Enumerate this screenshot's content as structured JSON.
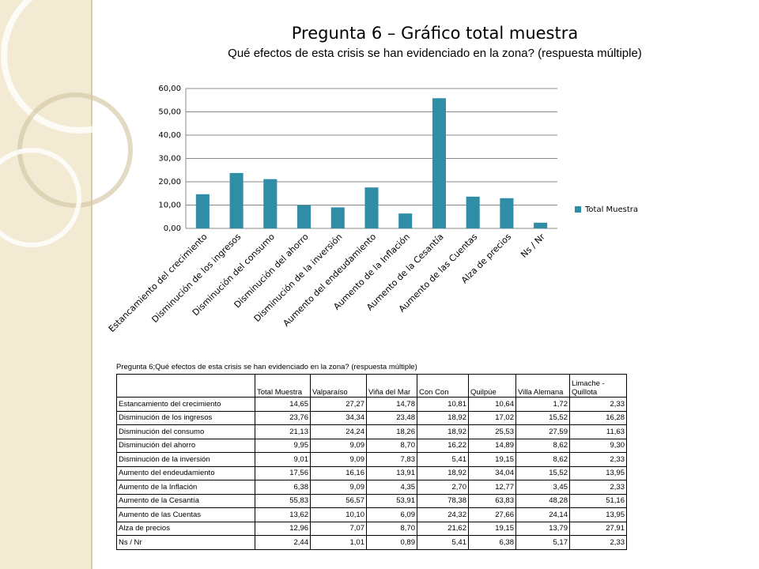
{
  "title": "Pregunta 6 – Gráfico total muestra",
  "subtitle": "Qué efectos de esta crisis se han evidenciado en la zona? (respuesta múltiple)",
  "chart_data": {
    "type": "bar",
    "categories": [
      "Estancamiento del crecimiento",
      "Disminución de los ingresos",
      "Disminución del consumo",
      "Disminución del ahorro",
      "Disminución de la inversión",
      "Aumento del endeudamiento",
      "Aumento de la Inflación",
      "Aumento de la Cesantía",
      "Aumento de las Cuentas",
      "Alza de precios",
      "Ns / Nr"
    ],
    "series": [
      {
        "name": "Total Muestra",
        "color": "#2f8ea6",
        "values": [
          14.65,
          23.76,
          21.13,
          9.95,
          9.01,
          17.56,
          6.38,
          55.83,
          13.62,
          12.96,
          2.44
        ]
      }
    ],
    "ylim": [
      0,
      60
    ],
    "yticks": [
      {
        "value": 0,
        "label": "0,00"
      },
      {
        "value": 10,
        "label": "10,00"
      },
      {
        "value": 20,
        "label": "20,00"
      },
      {
        "value": 30,
        "label": "30,00"
      },
      {
        "value": 40,
        "label": "40,00"
      },
      {
        "value": 50,
        "label": "50,00"
      },
      {
        "value": 60,
        "label": "60,00"
      }
    ],
    "grid": true,
    "legend": "right"
  },
  "table": {
    "title": "Pregunta 6;Qué efectos de esta crisis se han evidenciado en la zona? (respuesta múltiple)",
    "header": [
      "Total Muestra",
      "Valparaíso",
      "Viña del Mar",
      "Con Con",
      "Quilpúe",
      "Villa Alemana",
      "Limache - Quillota"
    ],
    "rows": [
      [
        "Estancamiento del crecimiento",
        "14,65",
        "27,27",
        "14,78",
        "10,81",
        "10,64",
        "1,72",
        "2,33"
      ],
      [
        "Disminución de los ingresos",
        "23,76",
        "34,34",
        "23,48",
        "18,92",
        "17,02",
        "15,52",
        "16,28"
      ],
      [
        "Disminución del consumo",
        "21,13",
        "24,24",
        "18,26",
        "18,92",
        "25,53",
        "27,59",
        "11,63"
      ],
      [
        "Disminución del ahorro",
        "9,95",
        "9,09",
        "8,70",
        "16,22",
        "14,89",
        "8,62",
        "9,30"
      ],
      [
        "Disminución de la inversión",
        "9,01",
        "9,09",
        "7,83",
        "5,41",
        "19,15",
        "8,62",
        "2,33"
      ],
      [
        "Aumento del endeudamiento",
        "17,56",
        "16,16",
        "13,91",
        "18,92",
        "34,04",
        "15,52",
        "13,95"
      ],
      [
        "Aumento de la Inflación",
        "6,38",
        "9,09",
        "4,35",
        "2,70",
        "12,77",
        "3,45",
        "2,33"
      ],
      [
        "Aumento de la Cesantía",
        "55,83",
        "56,57",
        "53,91",
        "78,38",
        "63,83",
        "48,28",
        "51,16"
      ],
      [
        "Aumento de las Cuentas",
        "13,62",
        "10,10",
        "6,09",
        "24,32",
        "27,66",
        "24,14",
        "13,95"
      ],
      [
        "Alza de precios",
        "12,96",
        "7,07",
        "8,70",
        "21,62",
        "19,15",
        "13,79",
        "27,91"
      ],
      [
        "Ns / Nr",
        "2,44",
        "1,01",
        "0,89",
        "5,41",
        "6,38",
        "5,17",
        "2,33"
      ]
    ]
  }
}
